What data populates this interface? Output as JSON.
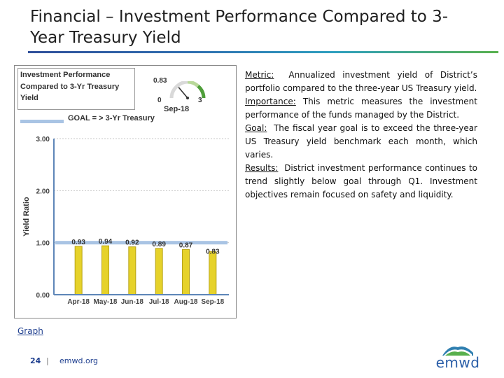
{
  "slide": {
    "title": "Financial – Investment Performance Compared to 3-Year Treasury Yield"
  },
  "chart_data": {
    "type": "bar",
    "title": "Investment Performance Compared to 3-Yr Treasury Yield",
    "categories": [
      "Apr-18",
      "May-18",
      "Jun-18",
      "Jul-18",
      "Aug-18",
      "Sep-18"
    ],
    "values": [
      0.93,
      0.94,
      0.92,
      0.89,
      0.87,
      0.83
    ],
    "value_labels": [
      "0.93",
      "0.94",
      "0.92",
      "0.89",
      "0.87",
      "0.83"
    ],
    "ylabel": "Yield Ratio",
    "xlabel": "",
    "ylim": [
      0,
      3
    ],
    "yticks": [
      0,
      1,
      2,
      3
    ],
    "ytick_labels": [
      "0.00",
      "1.00",
      "2.00",
      "3.00"
    ],
    "goal": {
      "label": "GOAL = > 3-Yr Treasury",
      "value": 1.0
    },
    "gauge": {
      "value": 0.83,
      "value_label": "0.83",
      "min_label": "0",
      "max_label": "3",
      "date": "Sep-18"
    },
    "colors": {
      "bar": "#e6d22a",
      "bar_edge": "#b7a318",
      "goal_line": "#a9c4e4",
      "axis": "#5e86b8"
    }
  },
  "graph_link": "Graph",
  "description": {
    "metric_label": "Metric:",
    "metric_text": "Annualized investment yield of District’s portfolio compared to the three-year US Treasury yield.",
    "importance_label": "Importance:",
    "importance_text": "This metric measures the investment performance of the funds managed by the District.",
    "goal_label": "Goal:",
    "goal_text": "The fiscal year goal is to exceed the three-year US Treasury yield benchmark each month, which varies.",
    "results_label": "Results:",
    "results_text": "District investment performance continues to trend slightly below goal through Q1. Investment objectives remain focused on safety and liquidity."
  },
  "footer": {
    "page_number": "24",
    "separator": "|",
    "url": "emwd.org"
  },
  "logo": {
    "text": "emwd"
  }
}
